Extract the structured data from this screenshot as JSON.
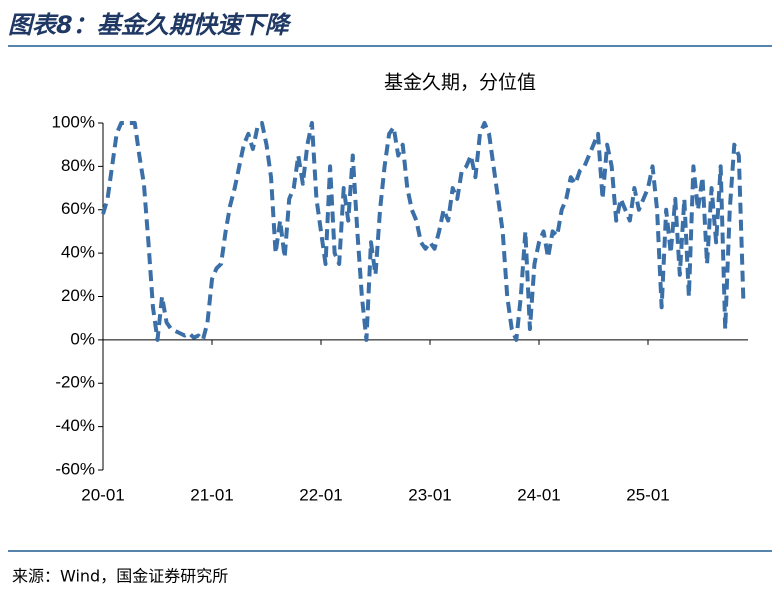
{
  "chart_data": {
    "type": "line",
    "title": "图表8：基金久期快速下降",
    "source": "来源：Wind，国金证券研究所",
    "categories": [
      "20-01",
      null,
      null,
      null,
      null,
      null,
      null,
      null,
      null,
      null,
      null,
      null,
      null,
      null,
      null,
      null,
      null,
      null,
      null,
      null,
      null,
      null,
      null,
      null,
      "21-01",
      null,
      null,
      null,
      null,
      null,
      null,
      null,
      null,
      null,
      null,
      null,
      null,
      null,
      null,
      null,
      null,
      null,
      null,
      null,
      null,
      null,
      null,
      null,
      "22-01",
      null,
      null,
      null,
      null,
      null,
      null,
      null,
      null,
      null,
      null,
      null,
      null,
      null,
      null,
      null,
      null,
      null,
      null,
      null,
      null,
      null,
      null,
      null,
      "23-01",
      null,
      null,
      null,
      null,
      null,
      null,
      null,
      null,
      null,
      null,
      null,
      null,
      null,
      null,
      null,
      null,
      null,
      null,
      null,
      null,
      null,
      null,
      null,
      "24-01",
      null,
      null,
      null,
      null,
      null,
      null,
      null,
      null,
      null,
      null,
      null,
      null,
      null,
      null,
      null,
      null,
      null,
      null,
      null,
      null,
      null,
      null,
      null,
      "25-01",
      null,
      null,
      null,
      null,
      null,
      null,
      null,
      null,
      null,
      null,
      null,
      null,
      null,
      null,
      null,
      null,
      null,
      null,
      null,
      null,
      null
    ],
    "series": [
      {
        "name": "基金久期，分位值",
        "color": "#3b6fa8",
        "values": [
          58,
          65,
          80,
          95,
          100,
          100,
          100,
          100,
          85,
          72,
          45,
          15,
          0,
          20,
          8,
          5,
          4,
          3,
          2,
          3,
          1,
          2,
          0,
          8,
          28,
          33,
          35,
          50,
          62,
          70,
          80,
          90,
          95,
          88,
          98,
          100,
          90,
          75,
          40,
          55,
          38,
          65,
          70,
          85,
          72,
          90,
          100,
          65,
          50,
          35,
          80,
          40,
          35,
          70,
          55,
          85,
          50,
          20,
          0,
          45,
          30,
          60,
          80,
          95,
          98,
          85,
          90,
          70,
          60,
          55,
          45,
          42,
          45,
          42,
          50,
          60,
          55,
          70,
          65,
          78,
          80,
          85,
          75,
          95,
          100,
          95,
          80,
          65,
          50,
          20,
          5,
          0,
          20,
          50,
          5,
          35,
          45,
          50,
          38,
          50,
          48,
          60,
          65,
          75,
          72,
          78,
          80,
          85,
          90,
          95,
          65,
          90,
          80,
          55,
          65,
          60,
          55,
          70,
          60,
          65,
          70,
          80,
          60,
          15,
          60,
          40,
          65,
          30,
          65,
          20,
          80,
          60,
          75,
          35,
          70,
          45,
          80,
          5,
          60,
          90,
          85,
          18
        ]
      }
    ],
    "ylim": [
      -60,
      100
    ],
    "yticks": [
      {
        "value": -60,
        "label": "-60%"
      },
      {
        "value": -40,
        "label": "-40%"
      },
      {
        "value": -20,
        "label": "-20%"
      },
      {
        "value": 0,
        "label": "0%"
      },
      {
        "value": 20,
        "label": "20%"
      },
      {
        "value": 40,
        "label": "40%"
      },
      {
        "value": 60,
        "label": "60%"
      },
      {
        "value": 80,
        "label": "80%"
      },
      {
        "value": 100,
        "label": "100%"
      }
    ],
    "grid": false
  }
}
